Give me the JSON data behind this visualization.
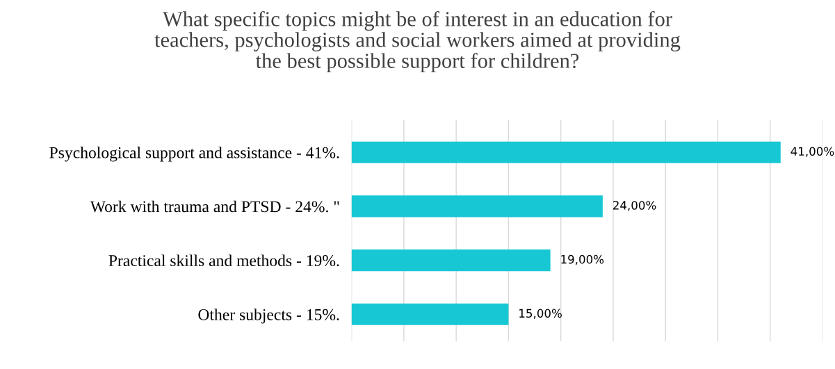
{
  "chart_data": {
    "type": "bar",
    "orientation": "horizontal",
    "title": "What specific topics might be of interest in an education for\nteachers, psychologists and social workers aimed at providing\nthe best possible support for children?",
    "categories": [
      "Psychological support and assistance - 41%.",
      "Work with trauma and PTSD - 24%. \"",
      "Practical skills and methods - 19%.",
      "Other subjects - 15%."
    ],
    "values": [
      41,
      24,
      19,
      15
    ],
    "value_labels": [
      "41,00%",
      "24,00%",
      "19,00%",
      "15,00%"
    ],
    "color": "#17c8d4",
    "xlim": [
      0,
      45
    ],
    "xticks": [
      {
        "value": 0,
        "label": null
      },
      {
        "value": 5,
        "label": null
      },
      {
        "value": 10,
        "label": null
      },
      {
        "value": 15,
        "label": null
      },
      {
        "value": 20,
        "label": null
      },
      {
        "value": 25,
        "label": null
      },
      {
        "value": 30,
        "label": null
      },
      {
        "value": 35,
        "label": null
      },
      {
        "value": 40,
        "label": null
      },
      {
        "value": 45,
        "label": null
      }
    ],
    "grid": "x",
    "tick_labels": "y",
    "legend": false
  }
}
